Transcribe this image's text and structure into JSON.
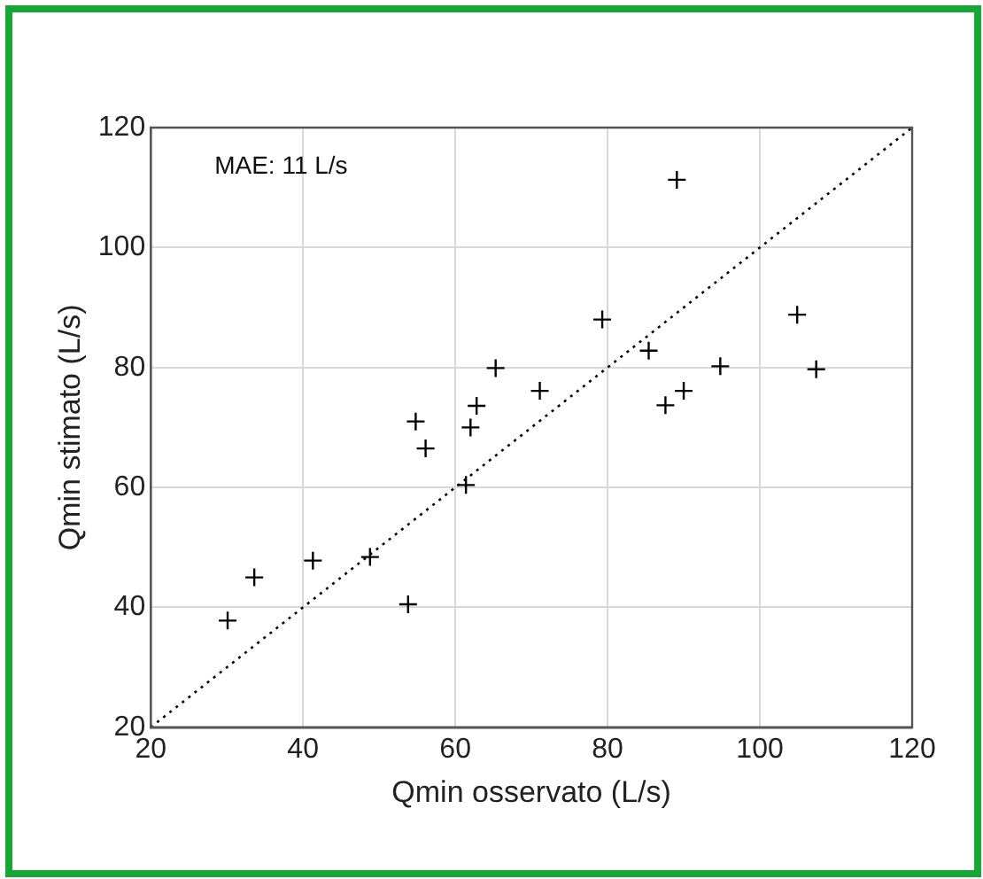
{
  "chart_data": {
    "type": "scatter",
    "xlabel": "Qmin osservato (L/s)",
    "ylabel": "Qmin stimato (L/s)",
    "annotations": [
      "MAE: 11 L/s"
    ],
    "series": [
      {
        "color": "#000000",
        "marker": "cross",
        "x": [
          30.1,
          33.6,
          41.3,
          48.8,
          53.8,
          54.8,
          56.1,
          61.4,
          62,
          62.8,
          65.3,
          71.1,
          79.3,
          85.4,
          87.6,
          90,
          89.1,
          94.8,
          104.9,
          107.4
        ],
        "values": [
          37.8,
          45,
          47.8,
          48.4,
          40.5,
          71,
          66.5,
          60.4,
          70,
          73.6,
          79.9,
          76.1,
          88,
          82.8,
          73.7,
          76.1,
          111.3,
          80.2,
          88.8,
          79.7
        ]
      },
      {
        "type": "line",
        "color": "#000000",
        "line_style": "dotted",
        "marker": "none",
        "x": [
          20,
          120
        ],
        "values": [
          20,
          120
        ]
      }
    ],
    "xlim": [
      20,
      120
    ],
    "ylim": [
      20,
      120
    ],
    "xticks": [
      20,
      40,
      60,
      80,
      100,
      120
    ],
    "yticks": [
      20,
      40,
      60,
      80,
      100,
      120
    ],
    "grid": true,
    "legend": false
  }
}
